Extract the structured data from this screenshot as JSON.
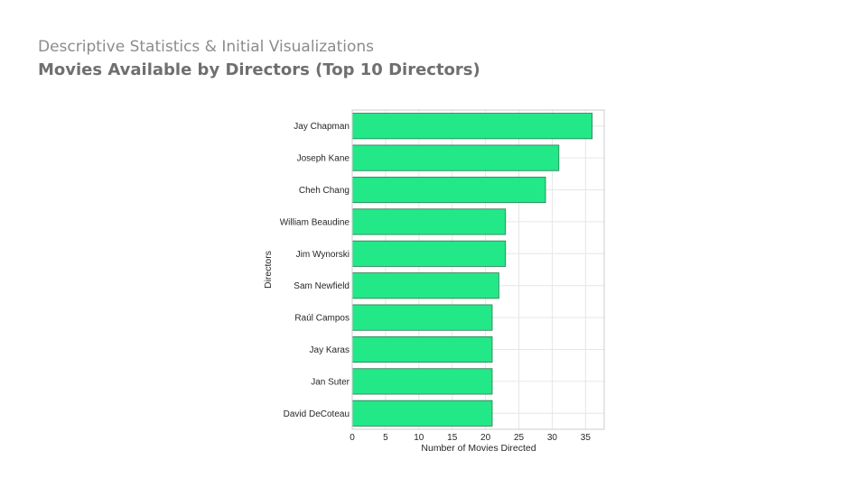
{
  "header": {
    "subtitle": "Descriptive Statistics & Initial Visualizations",
    "title": "Movies Available by Directors (Top 10 Directors)"
  },
  "chart_data": {
    "type": "bar",
    "orientation": "horizontal",
    "categories": [
      "Jay Chapman",
      "Joseph Kane",
      "Cheh Chang",
      "William Beaudine",
      "Jim Wynorski",
      "Sam Newfield",
      "Raúl Campos",
      "Jay Karas",
      "Jan Suter",
      "David DeCoteau"
    ],
    "values": [
      36,
      31,
      29,
      23,
      23,
      22,
      21,
      21,
      21,
      21
    ],
    "xlabel": "Number of Movies Directed",
    "ylabel": "Directors",
    "xlim": [
      0,
      37.8
    ],
    "xticks": [
      "0",
      "5",
      "10",
      "15",
      "20",
      "25",
      "30",
      "35"
    ],
    "grid": true,
    "colors": {
      "bar_fill": "#22e887",
      "bar_edge": "#2a7a52",
      "grid": "#e6e6e6",
      "frame": "#cccccc"
    }
  }
}
